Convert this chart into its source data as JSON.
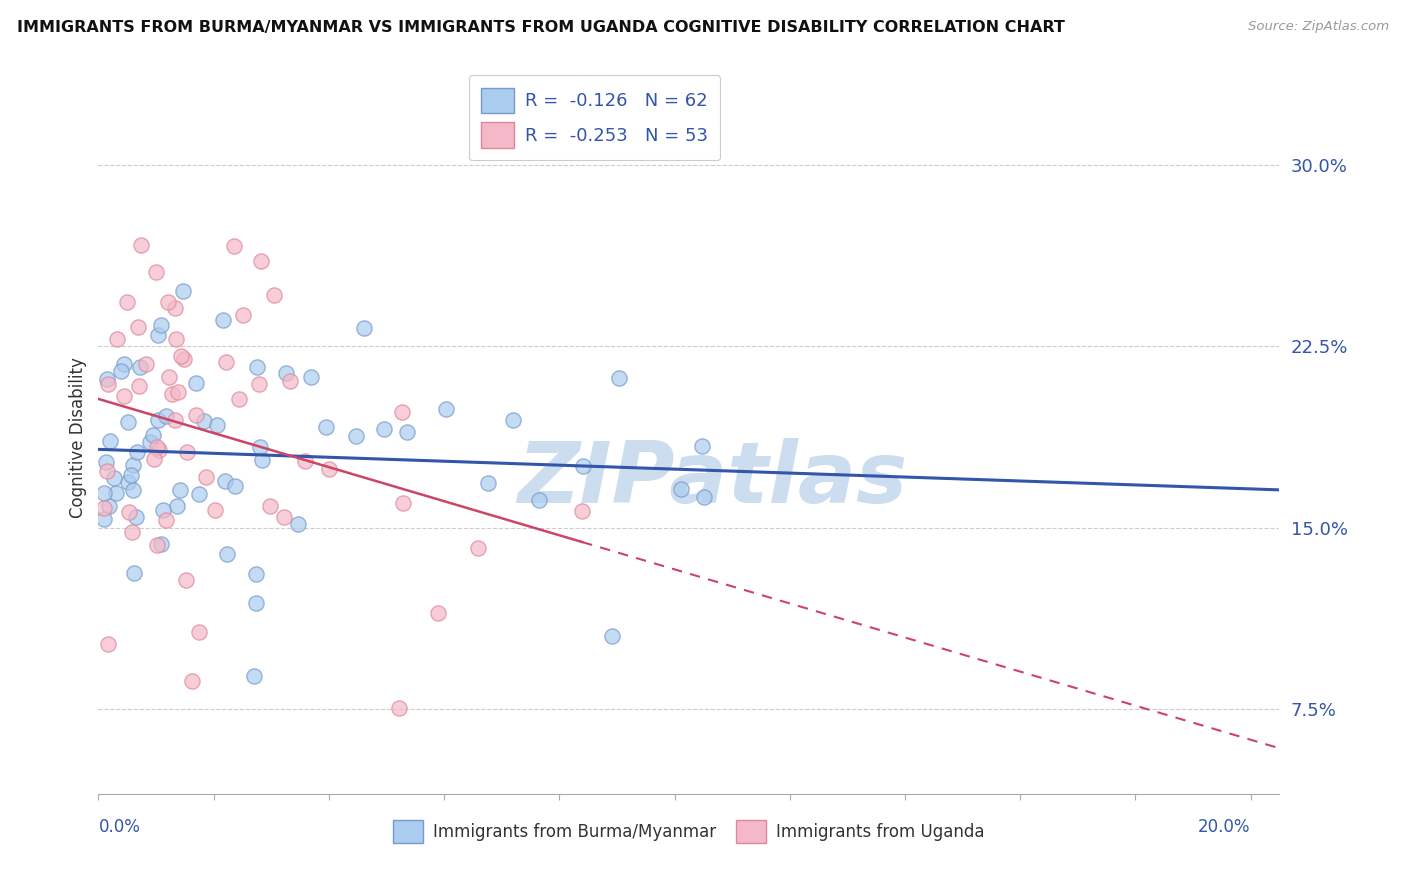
{
  "title": "IMMIGRANTS FROM BURMA/MYANMAR VS IMMIGRANTS FROM UGANDA COGNITIVE DISABILITY CORRELATION CHART",
  "source": "Source: ZipAtlas.com",
  "ylabel": "Cognitive Disability",
  "xlim": [
    0.0,
    0.205
  ],
  "ylim": [
    0.04,
    0.335
  ],
  "yticks": [
    0.075,
    0.15,
    0.225,
    0.3
  ],
  "ytick_labels": [
    "7.5%",
    "15.0%",
    "22.5%",
    "30.0%"
  ],
  "xtick_left_label": "0.0%",
  "xtick_right_label": "20.0%",
  "legend_line1": "R =  -0.126   N = 62",
  "legend_line2": "R =  -0.253   N = 53",
  "blue_face_color": "#aaccee",
  "blue_edge_color": "#7799cc",
  "pink_face_color": "#f4b8c8",
  "pink_edge_color": "#dd8899",
  "blue_line_color": "#3355aa",
  "pink_line_color": "#cc4466",
  "watermark_text": "ZIPatlas",
  "watermark_color": "#ccddf0",
  "series1_label": "Immigrants from Burma/Myanmar",
  "series2_label": "Immigrants from Uganda",
  "series1_R": -0.126,
  "series1_N": 62,
  "series2_R": -0.253,
  "series2_N": 53,
  "blue_intercept": 0.183,
  "blue_slope": -0.09,
  "pink_intercept": 0.205,
  "pink_slope": -0.65
}
